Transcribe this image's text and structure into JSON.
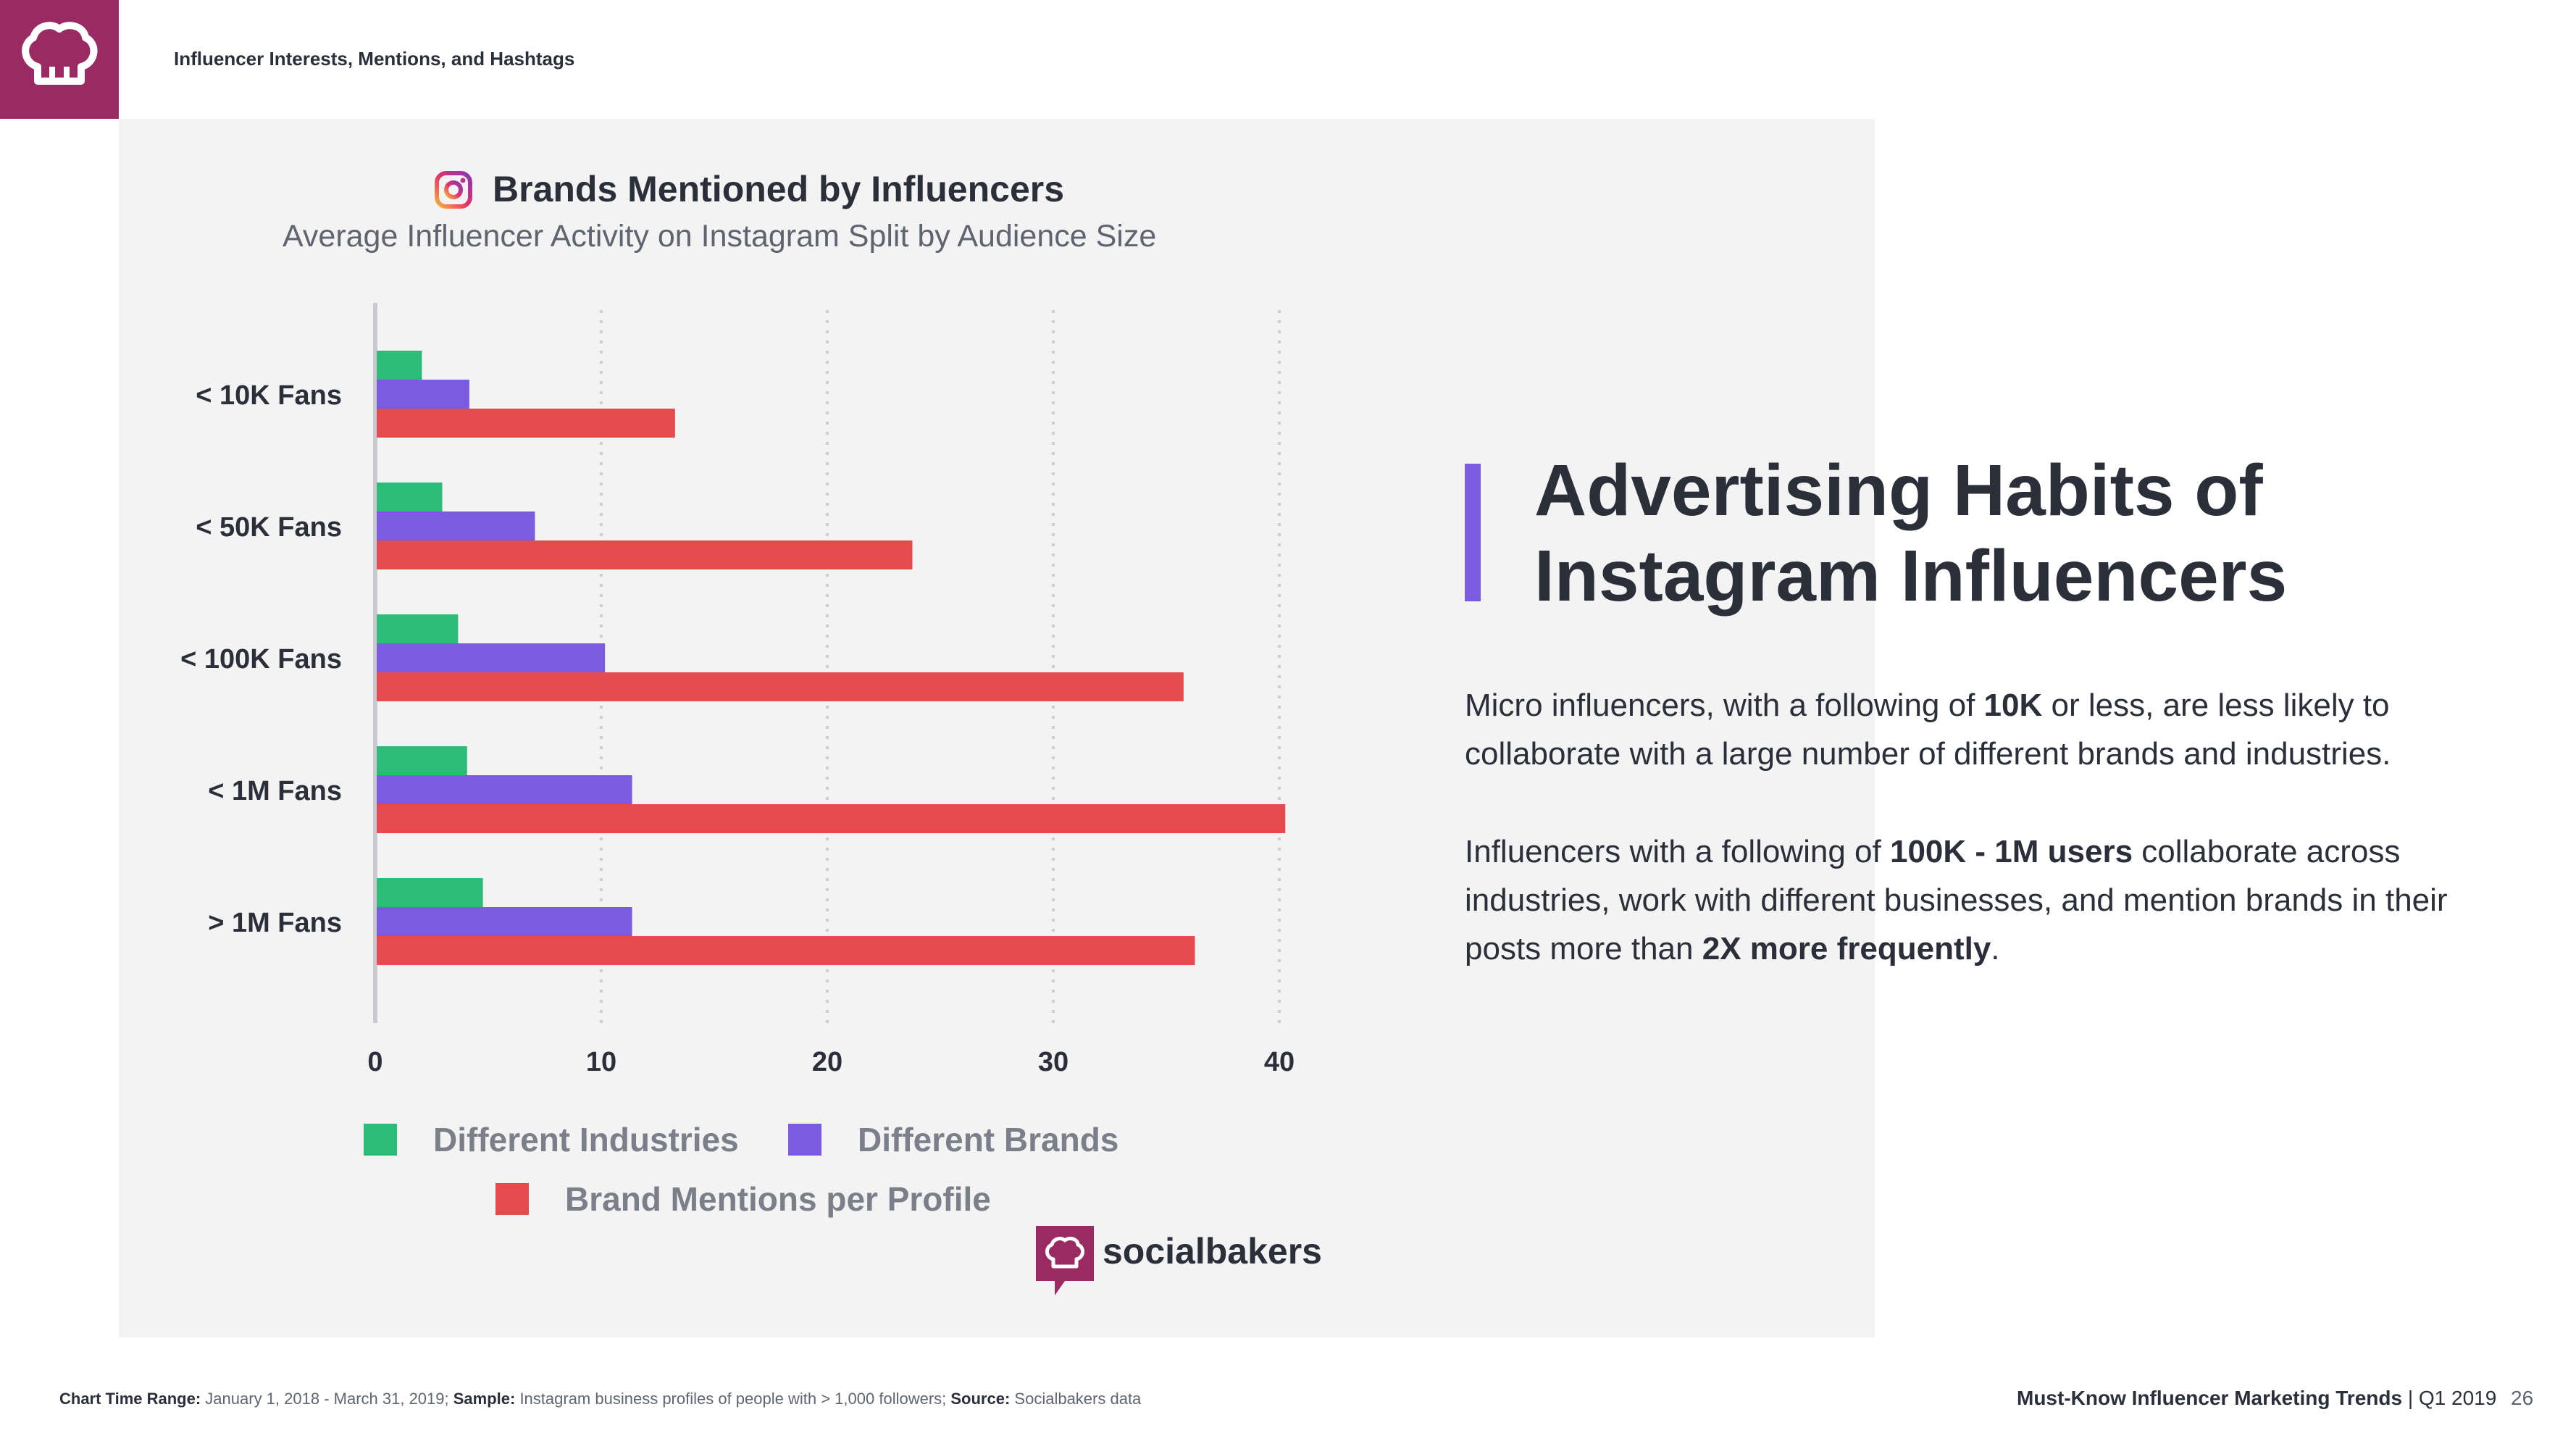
{
  "header": {
    "title": "Influencer Interests, Mentions, and Hashtags"
  },
  "chart_data": {
    "type": "bar",
    "orientation": "horizontal",
    "title": "Brands Mentioned by Influencers",
    "subtitle": "Average Influencer Activity on Instagram Split by Audience Size",
    "categories": [
      "< 10K Fans",
      "< 50K Fans",
      "< 100K Fans",
      "< 1M Fans",
      "> 1M Fans"
    ],
    "series": [
      {
        "name": "Different Industries",
        "color": "#2dbb78",
        "values": [
          2.0,
          2.9,
          3.6,
          4.0,
          4.7
        ]
      },
      {
        "name": "Different Brands",
        "color": "#7b5ce0",
        "values": [
          4.1,
          7.0,
          10.1,
          11.3,
          11.3
        ]
      },
      {
        "name": "Brand Mentions per Profile",
        "color": "#e54b4d",
        "values": [
          13.2,
          23.7,
          35.7,
          40.2,
          36.2
        ]
      }
    ],
    "xlim": [
      0,
      40
    ],
    "xticks": [
      "0",
      "10",
      "20",
      "30",
      "40"
    ],
    "grid": true,
    "legend_position": "bottom"
  },
  "brand": {
    "name": "socialbakers"
  },
  "article": {
    "heading_line1": "Advertising Habits of",
    "heading_line2": "Instagram Influencers",
    "p1_a": "Micro influencers, with a following of ",
    "p1_b": "10K",
    "p1_c": " or less, are less likely to collaborate with a large number of different brands and industries.",
    "p2_a": "Influencers with a following of ",
    "p2_b": "100K - 1M users",
    "p2_c": " collaborate across industries, work with different businesses, and mention brands in their posts more than ",
    "p2_d": "2X more frequently",
    "p2_e": "."
  },
  "footer": {
    "range_label": "Chart Time Range:",
    "range_value": " January 1, 2018 - March 31, 2019; ",
    "sample_label": "Sample:",
    "sample_value": " Instagram business profiles of people with > 1,000 followers; ",
    "source_label": "Source:",
    "source_value": " Socialbakers data",
    "report_title": "Must-Know Influencer Marketing Trends",
    "report_period": " | Q1 2019",
    "page_number": "26"
  },
  "colors": {
    "brand": "#9a2a62",
    "accent": "#7b5ce0"
  }
}
